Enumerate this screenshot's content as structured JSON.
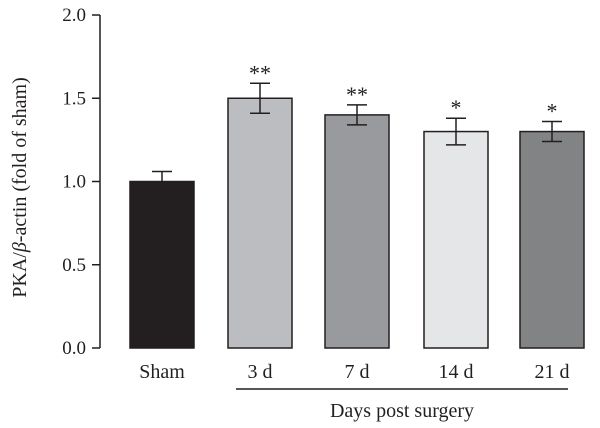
{
  "chart_data": {
    "type": "bar",
    "title": "",
    "ylabel_parts": [
      "PKA/",
      "β",
      "-actin (fold of sham)"
    ],
    "xlabel": "Days post surgery",
    "categories": [
      "Sham",
      "3 d",
      "7 d",
      "14 d",
      "21 d"
    ],
    "values": [
      1.0,
      1.5,
      1.4,
      1.3,
      1.3
    ],
    "errors": [
      0.06,
      0.09,
      0.06,
      0.08,
      0.06
    ],
    "significance": [
      "",
      "**",
      "**",
      "*",
      "*"
    ],
    "bar_colors": [
      "#231f20",
      "#bcbdc0",
      "#999a9d",
      "#e5e6e7",
      "#828385"
    ],
    "ylim": [
      0,
      2.0
    ],
    "yticks": [
      "0.0",
      "0.5",
      "1.0",
      "1.5",
      "2.0"
    ],
    "group_span": [
      1,
      4
    ],
    "grid": false,
    "legend": "none"
  }
}
